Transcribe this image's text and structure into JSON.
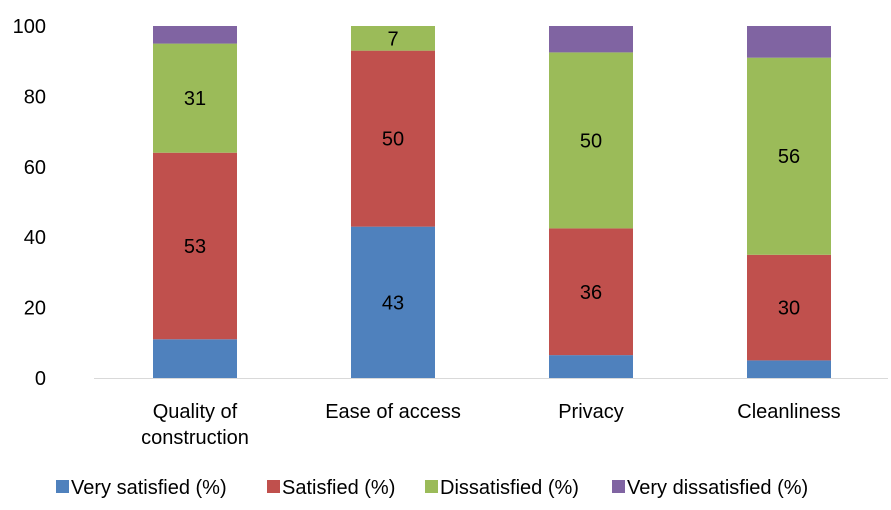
{
  "chart_data": {
    "type": "bar",
    "stacked": true,
    "categories": [
      [
        "Quality of",
        "construction"
      ],
      [
        "Ease of access"
      ],
      [
        "Privacy"
      ],
      [
        "Cleanliness"
      ]
    ],
    "series": [
      {
        "name": "Very satisfied (%)",
        "color": "#4f81bd",
        "values": [
          11,
          43,
          6.5,
          5
        ],
        "labels": [
          "",
          "43",
          "",
          ""
        ]
      },
      {
        "name": "Satisfied (%)",
        "color": "#c0504d",
        "values": [
          53,
          50,
          36,
          30
        ],
        "labels": [
          "53",
          "50",
          "36",
          "30"
        ]
      },
      {
        "name": "Dissatisfied (%)",
        "color": "#9bbb59",
        "values": [
          31,
          7,
          50,
          56
        ],
        "labels": [
          "31",
          "7",
          "50",
          "56"
        ]
      },
      {
        "name": "Very dissatisfied (%)",
        "color": "#8064a2",
        "values": [
          5,
          0,
          7.5,
          9
        ],
        "labels": [
          "",
          "",
          "",
          ""
        ]
      }
    ],
    "yticks": [
      "0",
      "20",
      "40",
      "60",
      "80",
      "100"
    ],
    "ylim": [
      0,
      100
    ],
    "grid": false,
    "legend": "bottom",
    "title": "",
    "xlabel": "",
    "ylabel": ""
  }
}
